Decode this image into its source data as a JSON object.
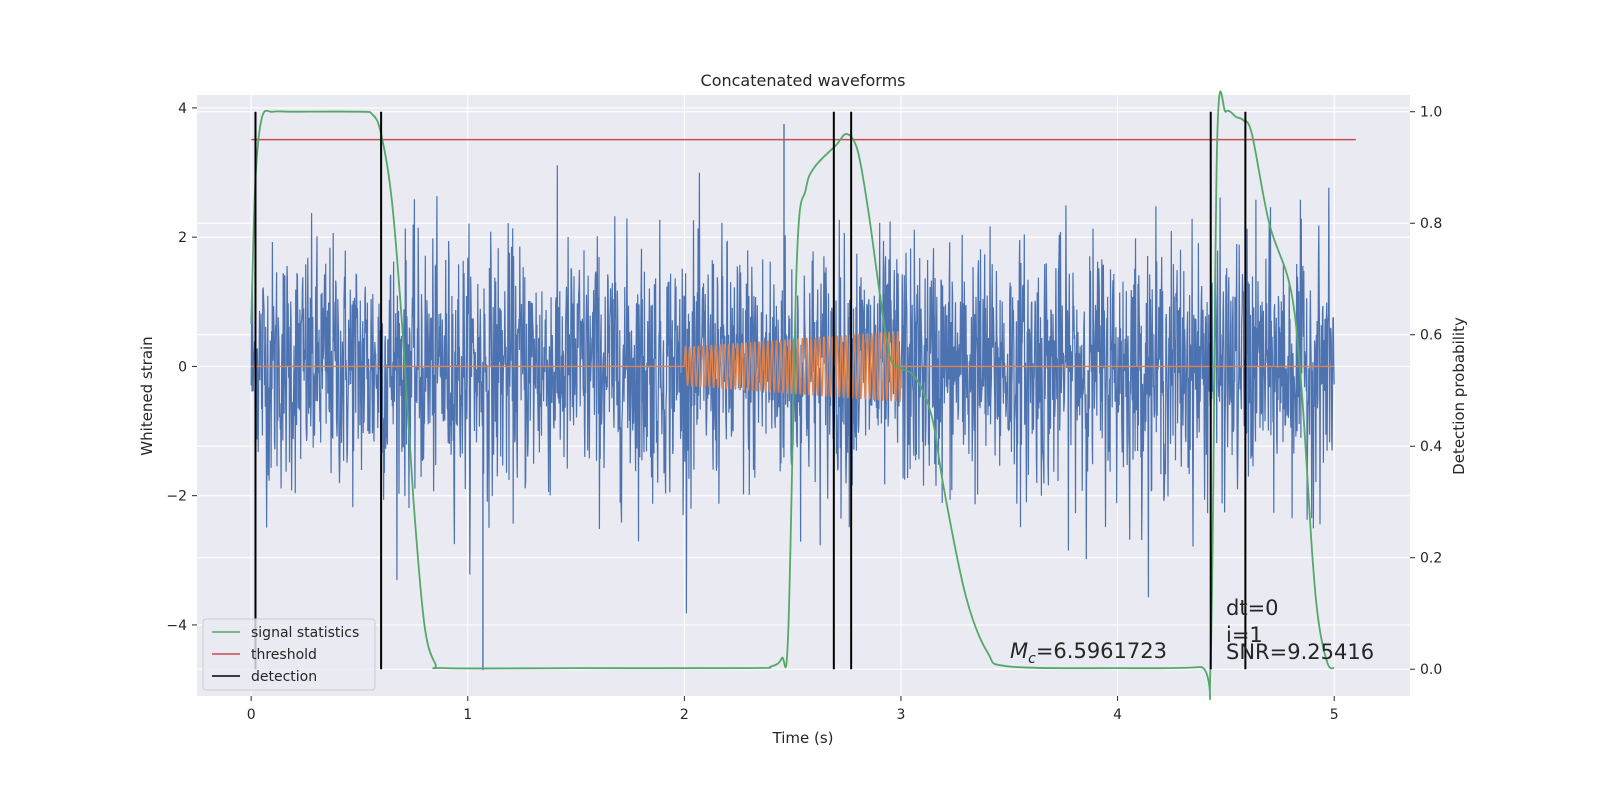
{
  "chart_data": {
    "type": "line",
    "title": "Concatenated waveforms",
    "xlabel": "Time (s)",
    "ylabel": "Whitened strain",
    "y2label": "Detection probability",
    "xlim": [
      -0.25,
      5.35
    ],
    "ylim": [
      -5.1,
      4.2
    ],
    "y2lim": [
      -0.048,
      1.03
    ],
    "xticks": [
      0,
      1,
      2,
      3,
      4,
      5
    ],
    "xtick_labels": [
      "0",
      "1",
      "2",
      "3",
      "4",
      "5"
    ],
    "yticks": [
      -4,
      -2,
      0,
      2,
      4
    ],
    "ytick_labels": [
      "−4",
      "−2",
      "0",
      "2",
      "4"
    ],
    "y2ticks": [
      0.0,
      0.2,
      0.4,
      0.6,
      0.8,
      1.0
    ],
    "y2tick_labels": [
      "0.0",
      "0.2",
      "0.4",
      "0.6",
      "0.8",
      "1.0"
    ],
    "grid": true,
    "legend_position": "lower-left",
    "colors": {
      "background": "#eaeaf2",
      "grid": "#ffffff",
      "strain": "#4c72b0",
      "template": "#dd8452",
      "statistic": "#55a868",
      "threshold": "#c44e52",
      "detection": "#000000"
    },
    "series": [
      {
        "name": "",
        "axis": "left",
        "color": "#4c72b0",
        "description_envelope": {
          "x_range": [
            0,
            5
          ],
          "approx_amplitude": 1.5,
          "max": 3.75,
          "min": -4.7
        }
      },
      {
        "name": "",
        "axis": "left",
        "color": "#dd8452",
        "x_range": [
          2.0,
          3.0
        ],
        "start_amplitude": 0.3,
        "end_amplitude": 0.55,
        "cycles": 50
      },
      {
        "name": "signal statistics",
        "axis": "right",
        "color": "#55a868",
        "x": [
          0.0,
          0.02,
          0.05,
          0.1,
          0.2,
          0.5,
          0.56,
          0.6,
          0.65,
          0.7,
          0.75,
          0.8,
          0.85,
          0.9,
          1.5,
          2.3,
          2.4,
          2.45,
          2.48,
          2.52,
          2.56,
          2.6,
          2.7,
          2.75,
          2.8,
          2.85,
          2.9,
          2.95,
          3.0,
          3.05,
          3.1,
          3.15,
          3.2,
          3.3,
          3.4,
          3.5,
          4.0,
          4.38,
          4.43,
          4.46,
          4.5,
          4.55,
          4.58,
          4.62,
          4.7,
          4.8,
          4.85,
          4.9,
          4.93,
          4.97,
          5.0
        ],
        "y": [
          0.62,
          0.88,
          0.99,
          1.0,
          1.0,
          1.0,
          0.995,
          0.96,
          0.84,
          0.6,
          0.3,
          0.08,
          0.01,
          0.002,
          0.002,
          0.002,
          0.005,
          0.02,
          0.07,
          0.74,
          0.86,
          0.9,
          0.94,
          0.96,
          0.93,
          0.82,
          0.68,
          0.56,
          0.54,
          0.53,
          0.5,
          0.44,
          0.32,
          0.13,
          0.03,
          0.005,
          0.002,
          0.004,
          0.02,
          0.95,
          1.0,
          0.99,
          0.985,
          0.96,
          0.8,
          0.68,
          0.5,
          0.2,
          0.08,
          0.01,
          0.002
        ]
      },
      {
        "name": "threshold",
        "axis": "right",
        "color": "#c44e52",
        "x": [
          0.0,
          5.1
        ],
        "y": [
          0.95,
          0.95
        ]
      },
      {
        "name": "detection",
        "axis": "right",
        "color": "#000000",
        "vlines_x": [
          0.02,
          0.6,
          2.69,
          2.77,
          4.43,
          4.59
        ],
        "ymin": 0.0,
        "ymax": 1.0
      }
    ],
    "annotations": [
      {
        "text": "$M_c$=6.5961723",
        "x": 3.5,
        "y": -4.5
      },
      {
        "text": "dt=0",
        "x": 4.52,
        "y": -3.8
      },
      {
        "text": "i=1",
        "x": 4.52,
        "y": -4.2
      },
      {
        "text": "SNR=9.25416",
        "x": 4.52,
        "y": -4.55
      }
    ]
  },
  "annotation_labels": {
    "mc_symbol": "M",
    "mc_subscript": "c",
    "mc_value": "=6.5961723",
    "dt": "dt=0",
    "i": "i=1",
    "snr": "SNR=9.25416"
  },
  "legend": {
    "items": [
      {
        "label": "signal statistics",
        "color": "#55a868"
      },
      {
        "label": "threshold",
        "color": "#c44e52"
      },
      {
        "label": "detection",
        "color": "#000000"
      }
    ]
  }
}
